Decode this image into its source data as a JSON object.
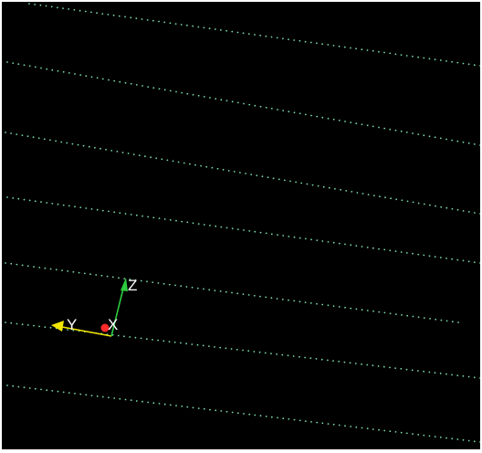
{
  "viewport": {
    "background": "#000000",
    "point_color": "#7cd9a6",
    "axis_triad": {
      "z_label": "Z",
      "y_label": "Y",
      "x_label": "X",
      "z_color": "#2ecc40",
      "y_color": "#f1e600",
      "x_color": "#ff2a2a"
    }
  }
}
